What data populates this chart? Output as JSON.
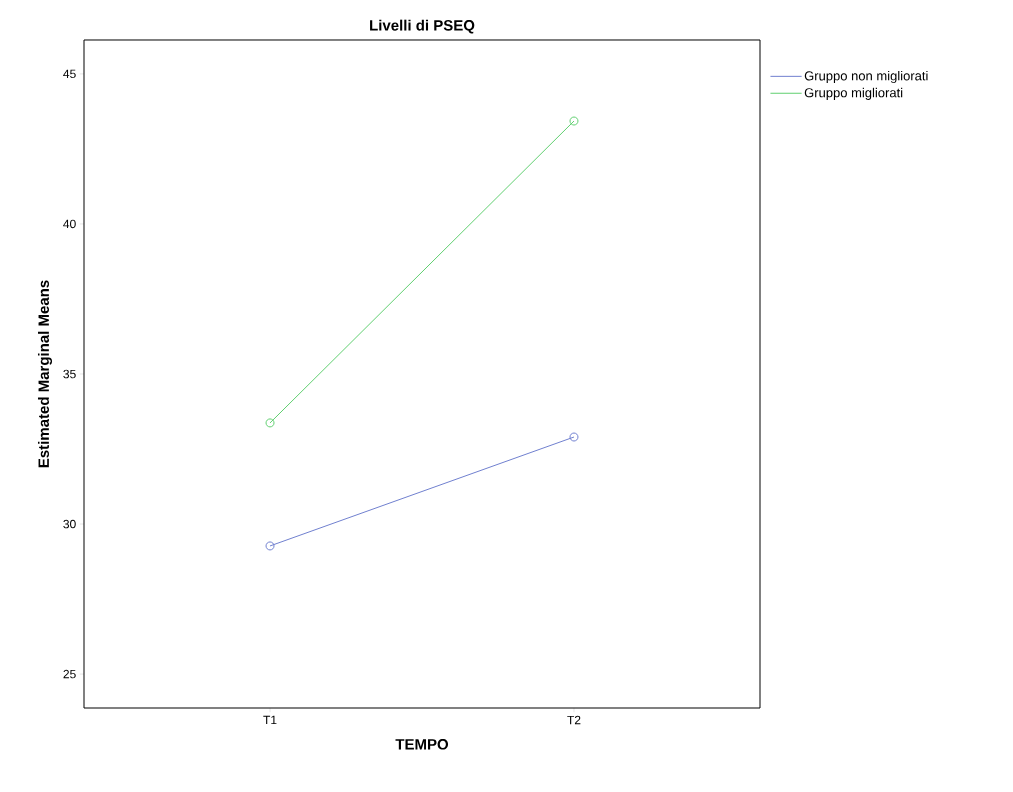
{
  "chart_data": {
    "type": "line",
    "title": "Livelli di PSEQ",
    "xlabel": "TEMPO",
    "ylabel": "Estimated Marginal Means",
    "categories": [
      "T1",
      "T2"
    ],
    "series": [
      {
        "name": "Gruppo non migliorati",
        "color": "#6f7fcf",
        "values": [
          29.27,
          32.9
        ]
      },
      {
        "name": "Gruppo migliorati",
        "color": "#5fcf6f",
        "values": [
          33.37,
          43.43
        ]
      }
    ],
    "ylim": [
      23.87,
      46.13
    ],
    "yticks": [
      25,
      30,
      35,
      40,
      45
    ],
    "grid": false,
    "legend": "top right",
    "marker": "circle",
    "line_style": "solid"
  }
}
